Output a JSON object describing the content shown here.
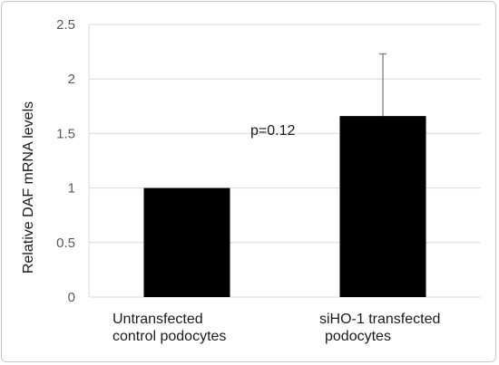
{
  "chart_data": {
    "type": "bar",
    "categories": [
      [
        "Untransfected",
        "control podocytes"
      ],
      [
        "siHO-1 transfected",
        "podocytes"
      ]
    ],
    "values": [
      1.0,
      1.66
    ],
    "error_upper": [
      0.0,
      0.57
    ],
    "ylabel": "Relative DAF  mRNA levels",
    "ylim": [
      0,
      2.5
    ],
    "yticks": [
      0,
      0.5,
      1,
      1.5,
      2,
      2.5
    ],
    "ytick_labels": [
      "0",
      "0.5",
      "1",
      "1.5",
      "2",
      "2.5"
    ],
    "grid": true,
    "annotations": [
      "p=0.12"
    ],
    "bar_color": "#000000",
    "gridline_color": "#d9d9d9"
  }
}
